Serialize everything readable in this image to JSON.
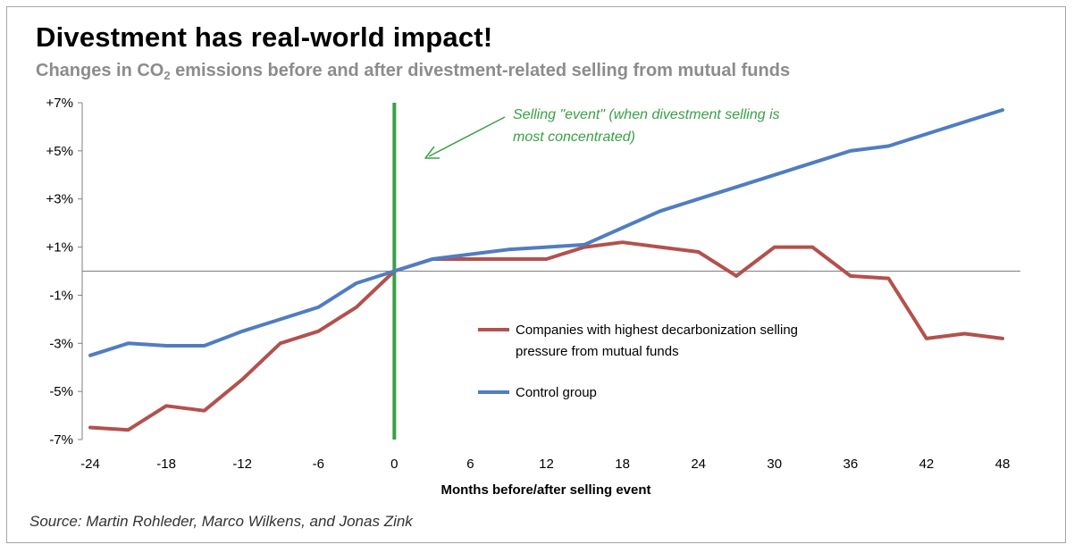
{
  "header": {
    "title": "Divestment has real-world impact!",
    "subtitle_before": "Changes in CO",
    "subtitle_sub": "2",
    "subtitle_after": " emissions before and after divestment-related selling from mutual funds"
  },
  "footer": {
    "source": "Source: Martin Rohleder, Marco Wilkens, and Jonas Zink"
  },
  "chart_data": {
    "type": "line",
    "title": "Divestment has real-world impact!",
    "xlabel": "Months before/after selling event",
    "ylabel": "",
    "xlim": [
      -24,
      48
    ],
    "ylim": [
      -7,
      7
    ],
    "x_ticks": [
      -24,
      -18,
      -12,
      -6,
      0,
      6,
      12,
      18,
      24,
      30,
      36,
      42,
      48
    ],
    "x_tick_labels": [
      "-24",
      "-18",
      "-12",
      "-6",
      "0",
      "6",
      "12",
      "18",
      "24",
      "30",
      "36",
      "42",
      "48"
    ],
    "y_ticks": [
      7,
      5,
      3,
      1,
      -1,
      -3,
      -5,
      -7
    ],
    "y_tick_labels": [
      "+7%",
      "+5%",
      "+3%",
      "+1%",
      "-1%",
      "-3%",
      "-5%",
      "-7%"
    ],
    "grid": false,
    "legend": "center-right",
    "event_line_x": 0,
    "annotation": {
      "lines": [
        "Selling \"event\" (when divestment selling is",
        "most concentrated)"
      ]
    },
    "series": [
      {
        "name": "Companies with highest decarbonization selling pressure from mutual funds",
        "legend_lines": [
          "Companies with highest decarbonization selling",
          "pressure from mutual funds"
        ],
        "color": "#b3514d",
        "x": [
          -24,
          -21,
          -18,
          -15,
          -12,
          -9,
          -6,
          -3,
          0,
          3,
          6,
          9,
          12,
          15,
          18,
          21,
          24,
          27,
          30,
          33,
          36,
          39,
          42,
          45,
          48
        ],
        "values": [
          -6.5,
          -6.6,
          -5.6,
          -5.8,
          -4.5,
          -3.0,
          -2.5,
          -1.5,
          0.0,
          0.5,
          0.5,
          0.5,
          0.5,
          1.0,
          1.2,
          1.0,
          0.8,
          -0.2,
          1.0,
          1.0,
          -0.2,
          -0.3,
          -2.8,
          -2.6,
          -2.8
        ]
      },
      {
        "name": "Control group",
        "legend_lines": [
          "Control group"
        ],
        "color": "#4f7dc3",
        "x": [
          -24,
          -21,
          -18,
          -15,
          -12,
          -9,
          -6,
          -3,
          0,
          3,
          6,
          9,
          12,
          15,
          18,
          21,
          24,
          27,
          30,
          33,
          36,
          39,
          42,
          45,
          48
        ],
        "values": [
          -3.5,
          -3.0,
          -3.1,
          -3.1,
          -2.5,
          -2.0,
          -1.5,
          -0.5,
          0.0,
          0.5,
          0.7,
          0.9,
          1.0,
          1.1,
          1.8,
          2.5,
          3.0,
          3.5,
          4.0,
          4.5,
          5.0,
          5.2,
          5.7,
          6.2,
          6.7
        ]
      }
    ],
    "colors": {
      "event_line": "#3aa046",
      "annotation": "#3aa046",
      "axis": "#7f7f7f"
    }
  }
}
